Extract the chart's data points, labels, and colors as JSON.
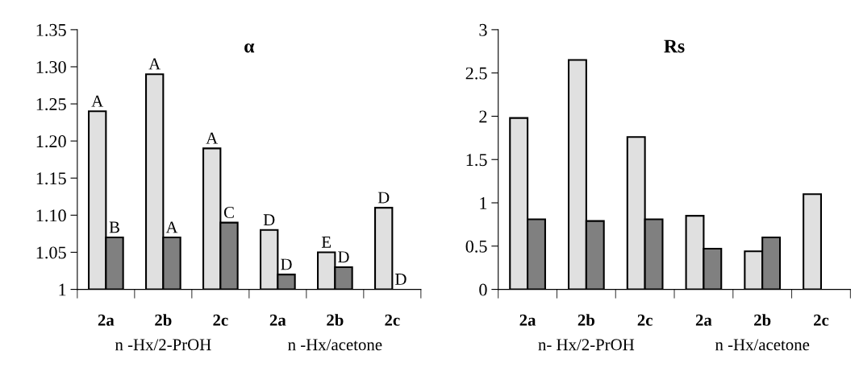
{
  "chart_data": [
    {
      "type": "bar",
      "title": "α",
      "categories": [
        "2a",
        "2b",
        "2c",
        "2a",
        "2b",
        "2c"
      ],
      "ylim": [
        1,
        1.35
      ],
      "yticks": [
        1,
        {
          "value": 1.05,
          "label": "1.05"
        },
        {
          "value": 1.1,
          "label": "1.10"
        },
        1.15,
        {
          "value": 1.2,
          "label": "1.20"
        },
        1.25,
        {
          "value": 1.3,
          "label": "1.30"
        },
        1.35
      ],
      "series": [
        {
          "color": "#e0e0e0",
          "values": [
            1.24,
            1.29,
            1.19,
            1.08,
            1.05,
            1.11
          ],
          "value_labels": [
            "A",
            "A",
            "A",
            "D",
            "E",
            "D"
          ]
        },
        {
          "color": "#808080",
          "values": [
            1.07,
            1.07,
            1.09,
            1.02,
            1.03,
            1.0
          ],
          "value_labels": [
            "B",
            "A",
            "C",
            "D",
            "D",
            "D"
          ]
        }
      ],
      "annotations": [
        "n -Hx/2-PrOH",
        "n -Hx/acetone"
      ],
      "grid": false
    },
    {
      "type": "bar",
      "title": "Rs",
      "categories": [
        "2a",
        "2b",
        "2c",
        "2a",
        "2b",
        "2c"
      ],
      "ylim": [
        0,
        3
      ],
      "yticks": [
        0,
        0.5,
        1,
        1.5,
        2,
        2.5,
        3
      ],
      "series": [
        {
          "color": "#e0e0e0",
          "values": [
            1.98,
            2.65,
            1.76,
            0.85,
            0.44,
            1.1
          ]
        },
        {
          "color": "#808080",
          "values": [
            0.81,
            0.79,
            0.81,
            0.47,
            0.6,
            null
          ]
        }
      ],
      "annotations": [
        "n- Hx/2-PrOH",
        "n -Hx/acetone"
      ],
      "grid": false
    }
  ]
}
